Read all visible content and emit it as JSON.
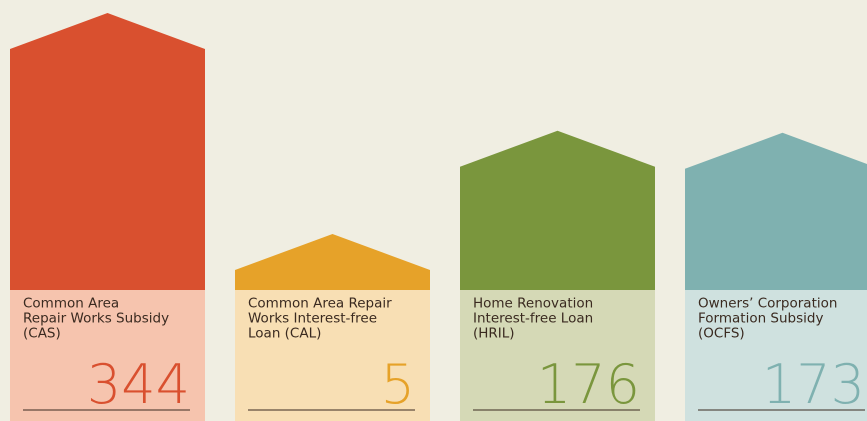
{
  "chart_data": {
    "type": "house-bar",
    "categories": [
      [
        "Common Area",
        "Repair Works Subsidy",
        "(CAS)"
      ],
      [
        "Common Area Repair",
        "Works Interest-free",
        "Loan (CAL)"
      ],
      [
        "Home Renovation",
        "Interest-free Loan",
        "(HRIL)"
      ],
      [
        "Owners’ Corporation",
        "Formation Subsidy",
        "(OCFS)"
      ]
    ],
    "values": [
      344,
      5,
      176,
      173
    ],
    "colors": [
      "#d9502f",
      "#e6a229",
      "#7a963d",
      "#7fb1b0"
    ],
    "panel_colors": [
      "#f6c4ae",
      "#f8dfb4",
      "#d5d9b6",
      "#cfe1df"
    ]
  }
}
